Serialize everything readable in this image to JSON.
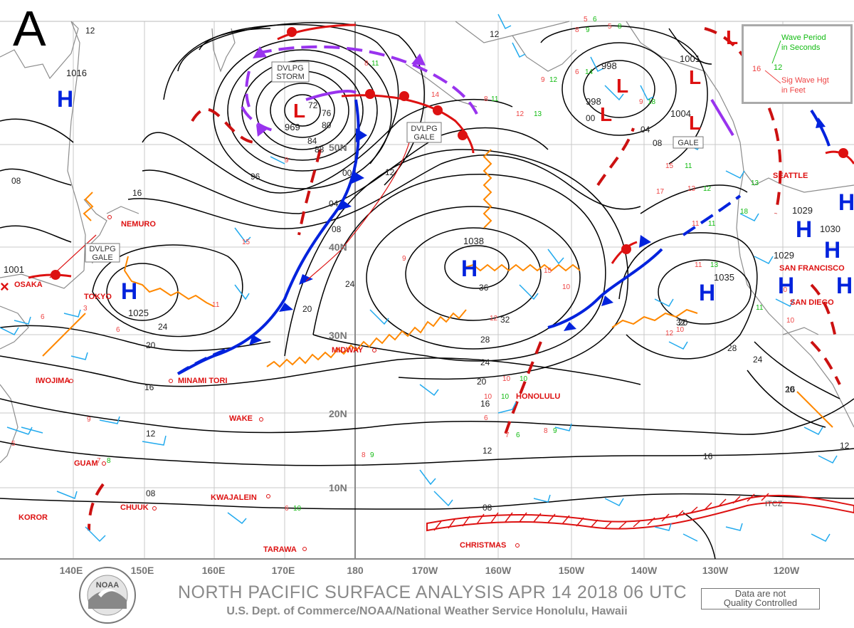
{
  "panel_letter": "A",
  "footer": {
    "title": "NORTH PACIFIC SURFACE ANALYSIS APR 14 2018 06 UTC",
    "subtitle": "U.S. Dept. of Commerce/NOAA/National Weather Service Honolulu, Hawaii",
    "qc_line1": "Data are not",
    "qc_line2": "Quality Controlled",
    "logo_text": "NOAA"
  },
  "legend": {
    "period_label_1": "Wave Period",
    "period_label_2": "in Seconds",
    "period_value": "12",
    "height_value": "16",
    "height_label_1": "Sig Wave Hgt",
    "height_label_2": "in Feet"
  },
  "longitude_labels": [
    "140E",
    "150E",
    "160E",
    "170E",
    "180",
    "170W",
    "160W",
    "150W",
    "140W",
    "130W",
    "120W"
  ],
  "latitude_labels": [
    "50N",
    "40N",
    "30N",
    "20N",
    "10N"
  ],
  "cities": [
    "NEMURO",
    "OSAKA",
    "TOKYO",
    "IWOJIMA",
    "MINAMI TORI",
    "MIDWAY",
    "WAKE",
    "GUAM",
    "CHUUK",
    "KOROR",
    "KWAJALEIN",
    "TARAWA",
    "CHRISTMAS",
    "HONOLULU",
    "SEATTLE",
    "SAN FRANCISCO",
    "SAN DIEGO"
  ],
  "pressure_centers": [
    {
      "type": "H",
      "value": "1016"
    },
    {
      "type": "H",
      "value": "1025"
    },
    {
      "type": "H",
      "value": "1038"
    },
    {
      "type": "H",
      "value": "1035"
    },
    {
      "type": "H",
      "value": "1029"
    },
    {
      "type": "H",
      "value": "1030"
    },
    {
      "type": "H",
      "value": "1029"
    },
    {
      "type": "L",
      "value": "969"
    },
    {
      "type": "L",
      "value": "998"
    },
    {
      "type": "L",
      "value": "998"
    },
    {
      "type": "L",
      "value": "1001"
    },
    {
      "type": "L",
      "value": "1004"
    },
    {
      "type": "L",
      "value": "1001"
    }
  ],
  "warning_boxes": [
    {
      "line1": "DVLPG",
      "line2": "STORM"
    },
    {
      "line1": "DVLPG",
      "line2": "GALE"
    },
    {
      "line1": "DVLPG",
      "line2": "GALE"
    },
    {
      "line1": "GALE",
      "line2": ""
    }
  ],
  "isobar_labels": [
    "12",
    "12",
    "08",
    "16",
    "20",
    "24",
    "20",
    "16",
    "12",
    "08",
    "96",
    "00",
    "04",
    "08",
    "12",
    "24",
    "20",
    "16",
    "36",
    "32",
    "28",
    "24",
    "20",
    "16",
    "12",
    "08",
    "04",
    "00",
    "08",
    "32",
    "28",
    "24",
    "20",
    "16",
    "12",
    "72",
    "76",
    "80",
    "84",
    "88"
  ],
  "itcz_label": "ITCZ",
  "colors": {
    "isobar": "#000000",
    "cold_front": "#0022dd",
    "warm_front": "#dd1111",
    "occluded_front": "#9933ee",
    "trough": "#cc1111",
    "ridge": "#ff8800",
    "wind_barb": "#22aaee",
    "wave_height": "#ee4444",
    "wave_period": "#11bb11",
    "grid": "#bbbbbb",
    "coast": "#888888",
    "footer": "#8a8a8a"
  }
}
